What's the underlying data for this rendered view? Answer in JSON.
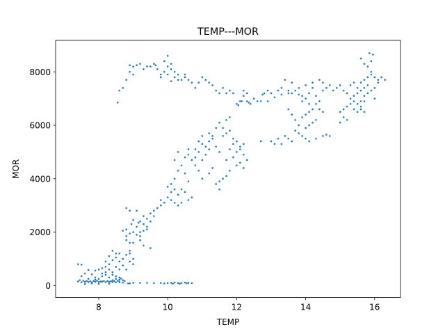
{
  "chart_data": {
    "type": "scatter",
    "title": "TEMP---MOR",
    "xlabel": "TEMP",
    "ylabel": "MOR",
    "xlim": [
      6.75,
      16.75
    ],
    "ylim": [
      -450,
      9180
    ],
    "xticks": [
      8,
      10,
      12,
      14,
      16
    ],
    "yticks": [
      0,
      2000,
      4000,
      6000,
      8000
    ],
    "grid": false,
    "legend": "none",
    "marker_color": "#1f77b4",
    "points": [
      [
        7.4,
        800
      ],
      [
        7.5,
        780
      ],
      [
        7.4,
        150
      ],
      [
        7.5,
        120
      ],
      [
        7.6,
        140
      ],
      [
        7.7,
        130
      ],
      [
        7.8,
        120
      ],
      [
        7.9,
        140
      ],
      [
        8.0,
        130
      ],
      [
        8.1,
        150
      ],
      [
        8.2,
        120
      ],
      [
        8.3,
        140
      ],
      [
        8.4,
        130
      ],
      [
        8.5,
        120
      ],
      [
        8.6,
        140
      ],
      [
        8.7,
        110
      ],
      [
        7.6,
        60
      ],
      [
        7.8,
        80
      ],
      [
        8.0,
        60
      ],
      [
        8.3,
        70
      ],
      [
        7.6,
        450
      ],
      [
        7.8,
        420
      ],
      [
        7.9,
        560
      ],
      [
        8.0,
        600
      ],
      [
        7.7,
        580
      ],
      [
        7.5,
        350
      ],
      [
        7.9,
        300
      ],
      [
        8.0,
        250
      ],
      [
        8.1,
        350
      ],
      [
        8.2,
        400
      ],
      [
        8.2,
        700
      ],
      [
        8.3,
        800
      ],
      [
        8.1,
        650
      ],
      [
        8.2,
        900
      ],
      [
        8.3,
        1100
      ],
      [
        8.4,
        950
      ],
      [
        8.5,
        1200
      ],
      [
        8.4,
        1300
      ],
      [
        8.5,
        1050
      ],
      [
        8.6,
        900
      ],
      [
        8.6,
        1200
      ],
      [
        8.7,
        1000
      ],
      [
        8.8,
        1150
      ],
      [
        8.9,
        1300
      ],
      [
        8.7,
        750
      ],
      [
        8.5,
        700
      ],
      [
        8.4,
        500
      ],
      [
        8.3,
        300
      ],
      [
        8.6,
        600
      ],
      [
        8.8,
        600
      ],
      [
        8.9,
        900
      ],
      [
        9.0,
        1000
      ],
      [
        8.9,
        1200
      ],
      [
        9.0,
        800
      ],
      [
        8.2,
        500
      ],
      [
        8.3,
        600
      ],
      [
        8.1,
        450
      ],
      [
        8.4,
        400
      ],
      [
        8.5,
        350
      ],
      [
        8.6,
        300
      ],
      [
        8.5,
        250
      ],
      [
        8.4,
        200
      ],
      [
        8.6,
        220
      ],
      [
        8.7,
        200
      ],
      [
        8.8,
        1700
      ],
      [
        8.8,
        1850
      ],
      [
        8.9,
        1950
      ],
      [
        8.8,
        2100
      ],
      [
        9.0,
        2000
      ],
      [
        9.1,
        1900
      ],
      [
        9.2,
        1850
      ],
      [
        9.1,
        2200
      ],
      [
        9.2,
        2400
      ],
      [
        9.3,
        2300
      ],
      [
        9.3,
        2600
      ],
      [
        9.4,
        2500
      ],
      [
        9.5,
        2400
      ],
      [
        9.4,
        2200
      ],
      [
        9.5,
        2700
      ],
      [
        9.6,
        2600
      ],
      [
        8.8,
        2900
      ],
      [
        8.9,
        2800
      ],
      [
        9.1,
        2800
      ],
      [
        9.0,
        1600
      ],
      [
        9.2,
        1700
      ],
      [
        9.3,
        1500
      ],
      [
        9.5,
        1400
      ],
      [
        9.6,
        2800
      ],
      [
        9.7,
        2900
      ],
      [
        9.8,
        3000
      ],
      [
        9.9,
        3100
      ],
      [
        9.8,
        3200
      ],
      [
        9.0,
        2450
      ],
      [
        8.7,
        2050
      ],
      [
        9.2,
        2000
      ],
      [
        9.3,
        2050
      ],
      [
        9.4,
        2100
      ],
      [
        8.9,
        1600
      ],
      [
        8.95,
        2300
      ],
      [
        9.15,
        2350
      ],
      [
        10.0,
        3300
      ],
      [
        10.1,
        3500
      ],
      [
        10.2,
        3600
      ],
      [
        10.1,
        3800
      ],
      [
        10.2,
        4000
      ],
      [
        10.3,
        3400
      ],
      [
        10.1,
        3200
      ],
      [
        10.2,
        3100
      ],
      [
        10.3,
        4300
      ],
      [
        10.0,
        3700
      ],
      [
        10.5,
        4200
      ],
      [
        10.4,
        3600
      ],
      [
        10.6,
        3900
      ],
      [
        10.5,
        3500
      ],
      [
        10.7,
        3300
      ],
      [
        10.6,
        3200
      ],
      [
        10.4,
        3100
      ],
      [
        10.3,
        3000
      ],
      [
        10.7,
        4700
      ],
      [
        10.6,
        4900
      ],
      [
        10.8,
        4800
      ],
      [
        10.9,
        5000
      ],
      [
        10.8,
        4500
      ],
      [
        11.0,
        4700
      ],
      [
        11.1,
        5200
      ],
      [
        11.2,
        5400
      ],
      [
        11.0,
        5300
      ],
      [
        11.3,
        5500
      ],
      [
        11.2,
        5100
      ],
      [
        11.1,
        4900
      ],
      [
        10.9,
        4300
      ],
      [
        11.0,
        4000
      ],
      [
        11.2,
        4200
      ],
      [
        11.3,
        4400
      ],
      [
        11.4,
        3800
      ],
      [
        11.5,
        3600
      ],
      [
        11.6,
        4000
      ],
      [
        11.5,
        3900
      ],
      [
        11.7,
        4100
      ],
      [
        11.8,
        4300
      ],
      [
        11.6,
        5600
      ],
      [
        11.7,
        5700
      ],
      [
        11.8,
        5800
      ],
      [
        11.9,
        5500
      ],
      [
        11.5,
        6100
      ],
      [
        11.7,
        6200
      ],
      [
        11.8,
        6300
      ],
      [
        11.6,
        5900
      ],
      [
        11.4,
        5900
      ],
      [
        11.3,
        5600
      ],
      [
        11.9,
        4800
      ],
      [
        12.0,
        5000
      ],
      [
        12.1,
        5200
      ],
      [
        12.2,
        4900
      ],
      [
        12.3,
        4700
      ],
      [
        12.1,
        4600
      ],
      [
        12.0,
        4500
      ],
      [
        12.2,
        5300
      ],
      [
        11.9,
        5300
      ],
      [
        12.0,
        5400
      ],
      [
        12.1,
        5100
      ],
      [
        12.2,
        4400
      ],
      [
        11.8,
        5100
      ],
      [
        11.7,
        4700
      ],
      [
        10.6,
        5100
      ],
      [
        10.5,
        4800
      ],
      [
        10.4,
        4500
      ],
      [
        10.2,
        4700
      ],
      [
        10.3,
        5000
      ],
      [
        10.8,
        5100
      ],
      [
        10.9,
        5400
      ],
      [
        11.0,
        5600
      ],
      [
        11.2,
        5700
      ],
      [
        11.4,
        5200
      ],
      [
        11.5,
        5000
      ],
      [
        12.7,
        5400
      ],
      [
        13.0,
        5400
      ],
      [
        13.2,
        5500
      ],
      [
        13.4,
        5600
      ],
      [
        13.5,
        5500
      ],
      [
        13.1,
        5300
      ],
      [
        13.3,
        5300
      ],
      [
        13.6,
        5400
      ],
      [
        13.7,
        5800
      ],
      [
        13.8,
        5700
      ],
      [
        13.9,
        5600
      ],
      [
        14.0,
        5500
      ],
      [
        14.1,
        5400
      ],
      [
        14.3,
        5500
      ],
      [
        14.5,
        5600
      ],
      [
        14.6,
        5650
      ],
      [
        14.7,
        5600
      ],
      [
        14.0,
        5900
      ],
      [
        14.1,
        6000
      ],
      [
        14.2,
        6100
      ],
      [
        14.3,
        6200
      ],
      [
        13.9,
        6300
      ],
      [
        14.0,
        6400
      ],
      [
        14.1,
        6500
      ],
      [
        14.2,
        6600
      ],
      [
        13.8,
        6000
      ],
      [
        13.7,
        6200
      ],
      [
        13.6,
        6400
      ],
      [
        13.5,
        6600
      ],
      [
        13.9,
        6900
      ],
      [
        14.0,
        7000
      ],
      [
        14.1,
        7200
      ],
      [
        14.2,
        7400
      ],
      [
        14.0,
        7500
      ],
      [
        14.1,
        6800
      ],
      [
        14.3,
        6800
      ],
      [
        14.4,
        6600
      ],
      [
        14.5,
        6500
      ],
      [
        14.4,
        6900
      ],
      [
        14.3,
        7100
      ],
      [
        14.5,
        7300
      ],
      [
        14.6,
        7400
      ],
      [
        14.7,
        7500
      ],
      [
        14.8,
        7300
      ],
      [
        14.9,
        7400
      ],
      [
        15.0,
        7500
      ],
      [
        15.1,
        7300
      ],
      [
        15.2,
        7200
      ],
      [
        15.0,
        6500
      ],
      [
        15.1,
        6600
      ],
      [
        15.2,
        6700
      ],
      [
        15.3,
        6800
      ],
      [
        15.4,
        6900
      ],
      [
        15.1,
        6300
      ],
      [
        15.2,
        6200
      ],
      [
        15.0,
        6100
      ],
      [
        15.3,
        7000
      ],
      [
        15.4,
        7100
      ],
      [
        15.5,
        7200
      ],
      [
        15.6,
        7300
      ],
      [
        15.7,
        7400
      ],
      [
        15.6,
        7600
      ],
      [
        15.7,
        7700
      ],
      [
        15.8,
        7800
      ],
      [
        15.9,
        7900
      ],
      [
        15.8,
        7500
      ],
      [
        15.9,
        7300
      ],
      [
        16.0,
        7400
      ],
      [
        16.1,
        7600
      ],
      [
        16.0,
        7800
      ],
      [
        16.1,
        7700
      ],
      [
        15.9,
        8000
      ],
      [
        15.8,
        7200
      ],
      [
        15.7,
        7100
      ],
      [
        15.6,
        6900
      ],
      [
        15.5,
        6800
      ],
      [
        15.4,
        6600
      ],
      [
        15.5,
        6500
      ],
      [
        15.6,
        6700
      ],
      [
        15.7,
        6900
      ],
      [
        15.8,
        8200
      ],
      [
        15.9,
        8400
      ],
      [
        15.6,
        8500
      ],
      [
        15.7,
        8300
      ],
      [
        16.2,
        7800
      ],
      [
        16.3,
        7700
      ],
      [
        15.85,
        8700
      ],
      [
        15.95,
        8650
      ],
      [
        16.0,
        7000
      ],
      [
        15.7,
        6500
      ],
      [
        15.6,
        6600
      ],
      [
        15.5,
        7400
      ],
      [
        15.3,
        7500
      ],
      [
        15.4,
        7600
      ],
      [
        13.3,
        7400
      ],
      [
        13.4,
        7700
      ],
      [
        13.2,
        7300
      ],
      [
        13.0,
        7200
      ],
      [
        12.9,
        7300
      ],
      [
        12.8,
        7200
      ],
      [
        13.5,
        7300
      ],
      [
        13.6,
        7200
      ],
      [
        13.7,
        7300
      ],
      [
        13.8,
        7400
      ],
      [
        13.9,
        7100
      ],
      [
        14.2,
        7600
      ],
      [
        14.4,
        7700
      ],
      [
        14.5,
        7600
      ],
      [
        13.6,
        7600
      ],
      [
        13.5,
        7200
      ],
      [
        13.3,
        7150
      ],
      [
        12.6,
        6900
      ],
      [
        12.4,
        6800
      ],
      [
        12.3,
        6900
      ],
      [
        12.2,
        7100
      ],
      [
        12.1,
        6900
      ],
      [
        12.0,
        6800
      ],
      [
        12.2,
        7300
      ],
      [
        12.3,
        7200
      ],
      [
        12.5,
        7000
      ],
      [
        12.7,
        6900
      ],
      [
        12.9,
        6900
      ],
      [
        11.8,
        7300
      ],
      [
        11.7,
        7200
      ],
      [
        11.6,
        7400
      ],
      [
        11.5,
        7200
      ],
      [
        11.4,
        7300
      ],
      [
        11.2,
        7600
      ],
      [
        11.1,
        7700
      ],
      [
        11.0,
        7800
      ],
      [
        10.9,
        7600
      ],
      [
        10.8,
        7400
      ],
      [
        10.7,
        7600
      ],
      [
        10.6,
        7700
      ],
      [
        10.5,
        7800
      ],
      [
        10.4,
        7700
      ],
      [
        10.3,
        7900
      ],
      [
        10.2,
        8000
      ],
      [
        10.1,
        8100
      ],
      [
        10.0,
        8200
      ],
      [
        9.9,
        8000
      ],
      [
        9.8,
        7800
      ],
      [
        9.7,
        8100
      ],
      [
        9.6,
        8300
      ],
      [
        9.5,
        8200
      ],
      [
        9.4,
        8200
      ],
      [
        9.3,
        8100
      ],
      [
        9.2,
        8300
      ],
      [
        9.1,
        8250
      ],
      [
        9.0,
        8200
      ],
      [
        10.0,
        8600
      ],
      [
        10.1,
        8300
      ],
      [
        10.2,
        7800
      ],
      [
        10.3,
        7700
      ],
      [
        10.0,
        7900
      ],
      [
        9.8,
        7900
      ],
      [
        10.1,
        7650
      ],
      [
        9.9,
        8400
      ],
      [
        10.5,
        7900
      ],
      [
        9.65,
        8250
      ],
      [
        8.6,
        7300
      ],
      [
        8.7,
        7400
      ],
      [
        8.8,
        7700
      ],
      [
        8.9,
        8000
      ],
      [
        9.0,
        7900
      ],
      [
        8.55,
        6850
      ],
      [
        8.9,
        8250
      ],
      [
        11.3,
        7500
      ],
      [
        11.9,
        7200
      ],
      [
        12.05,
        6750
      ],
      [
        12.15,
        6900
      ],
      [
        12.35,
        6850
      ],
      [
        12.75,
        7150
      ],
      [
        13.1,
        7050
      ],
      [
        13.8,
        7150
      ],
      [
        9.4,
        100
      ],
      [
        9.6,
        90
      ],
      [
        9.8,
        100
      ],
      [
        10.0,
        90
      ],
      [
        10.1,
        100
      ],
      [
        10.2,
        110
      ],
      [
        10.3,
        90
      ],
      [
        10.4,
        100
      ],
      [
        10.5,
        110
      ],
      [
        10.6,
        100
      ],
      [
        10.7,
        90
      ],
      [
        9.2,
        100
      ],
      [
        9.0,
        100
      ],
      [
        8.9,
        80
      ],
      [
        10.15,
        70
      ],
      [
        10.35,
        70
      ],
      [
        10.55,
        80
      ],
      [
        9.9,
        80
      ],
      [
        8.6,
        130
      ],
      [
        8.65,
        260
      ],
      [
        7.45,
        200
      ],
      [
        7.55,
        180
      ],
      [
        7.65,
        170
      ],
      [
        7.75,
        160
      ],
      [
        7.85,
        170
      ],
      [
        7.95,
        180
      ],
      [
        8.05,
        150
      ],
      [
        8.15,
        170
      ],
      [
        8.25,
        170
      ],
      [
        8.35,
        160
      ],
      [
        8.45,
        170
      ],
      [
        8.55,
        180
      ],
      [
        8.75,
        170
      ],
      [
        8.85,
        80
      ],
      [
        7.7,
        250
      ],
      [
        7.9,
        220
      ]
    ]
  }
}
